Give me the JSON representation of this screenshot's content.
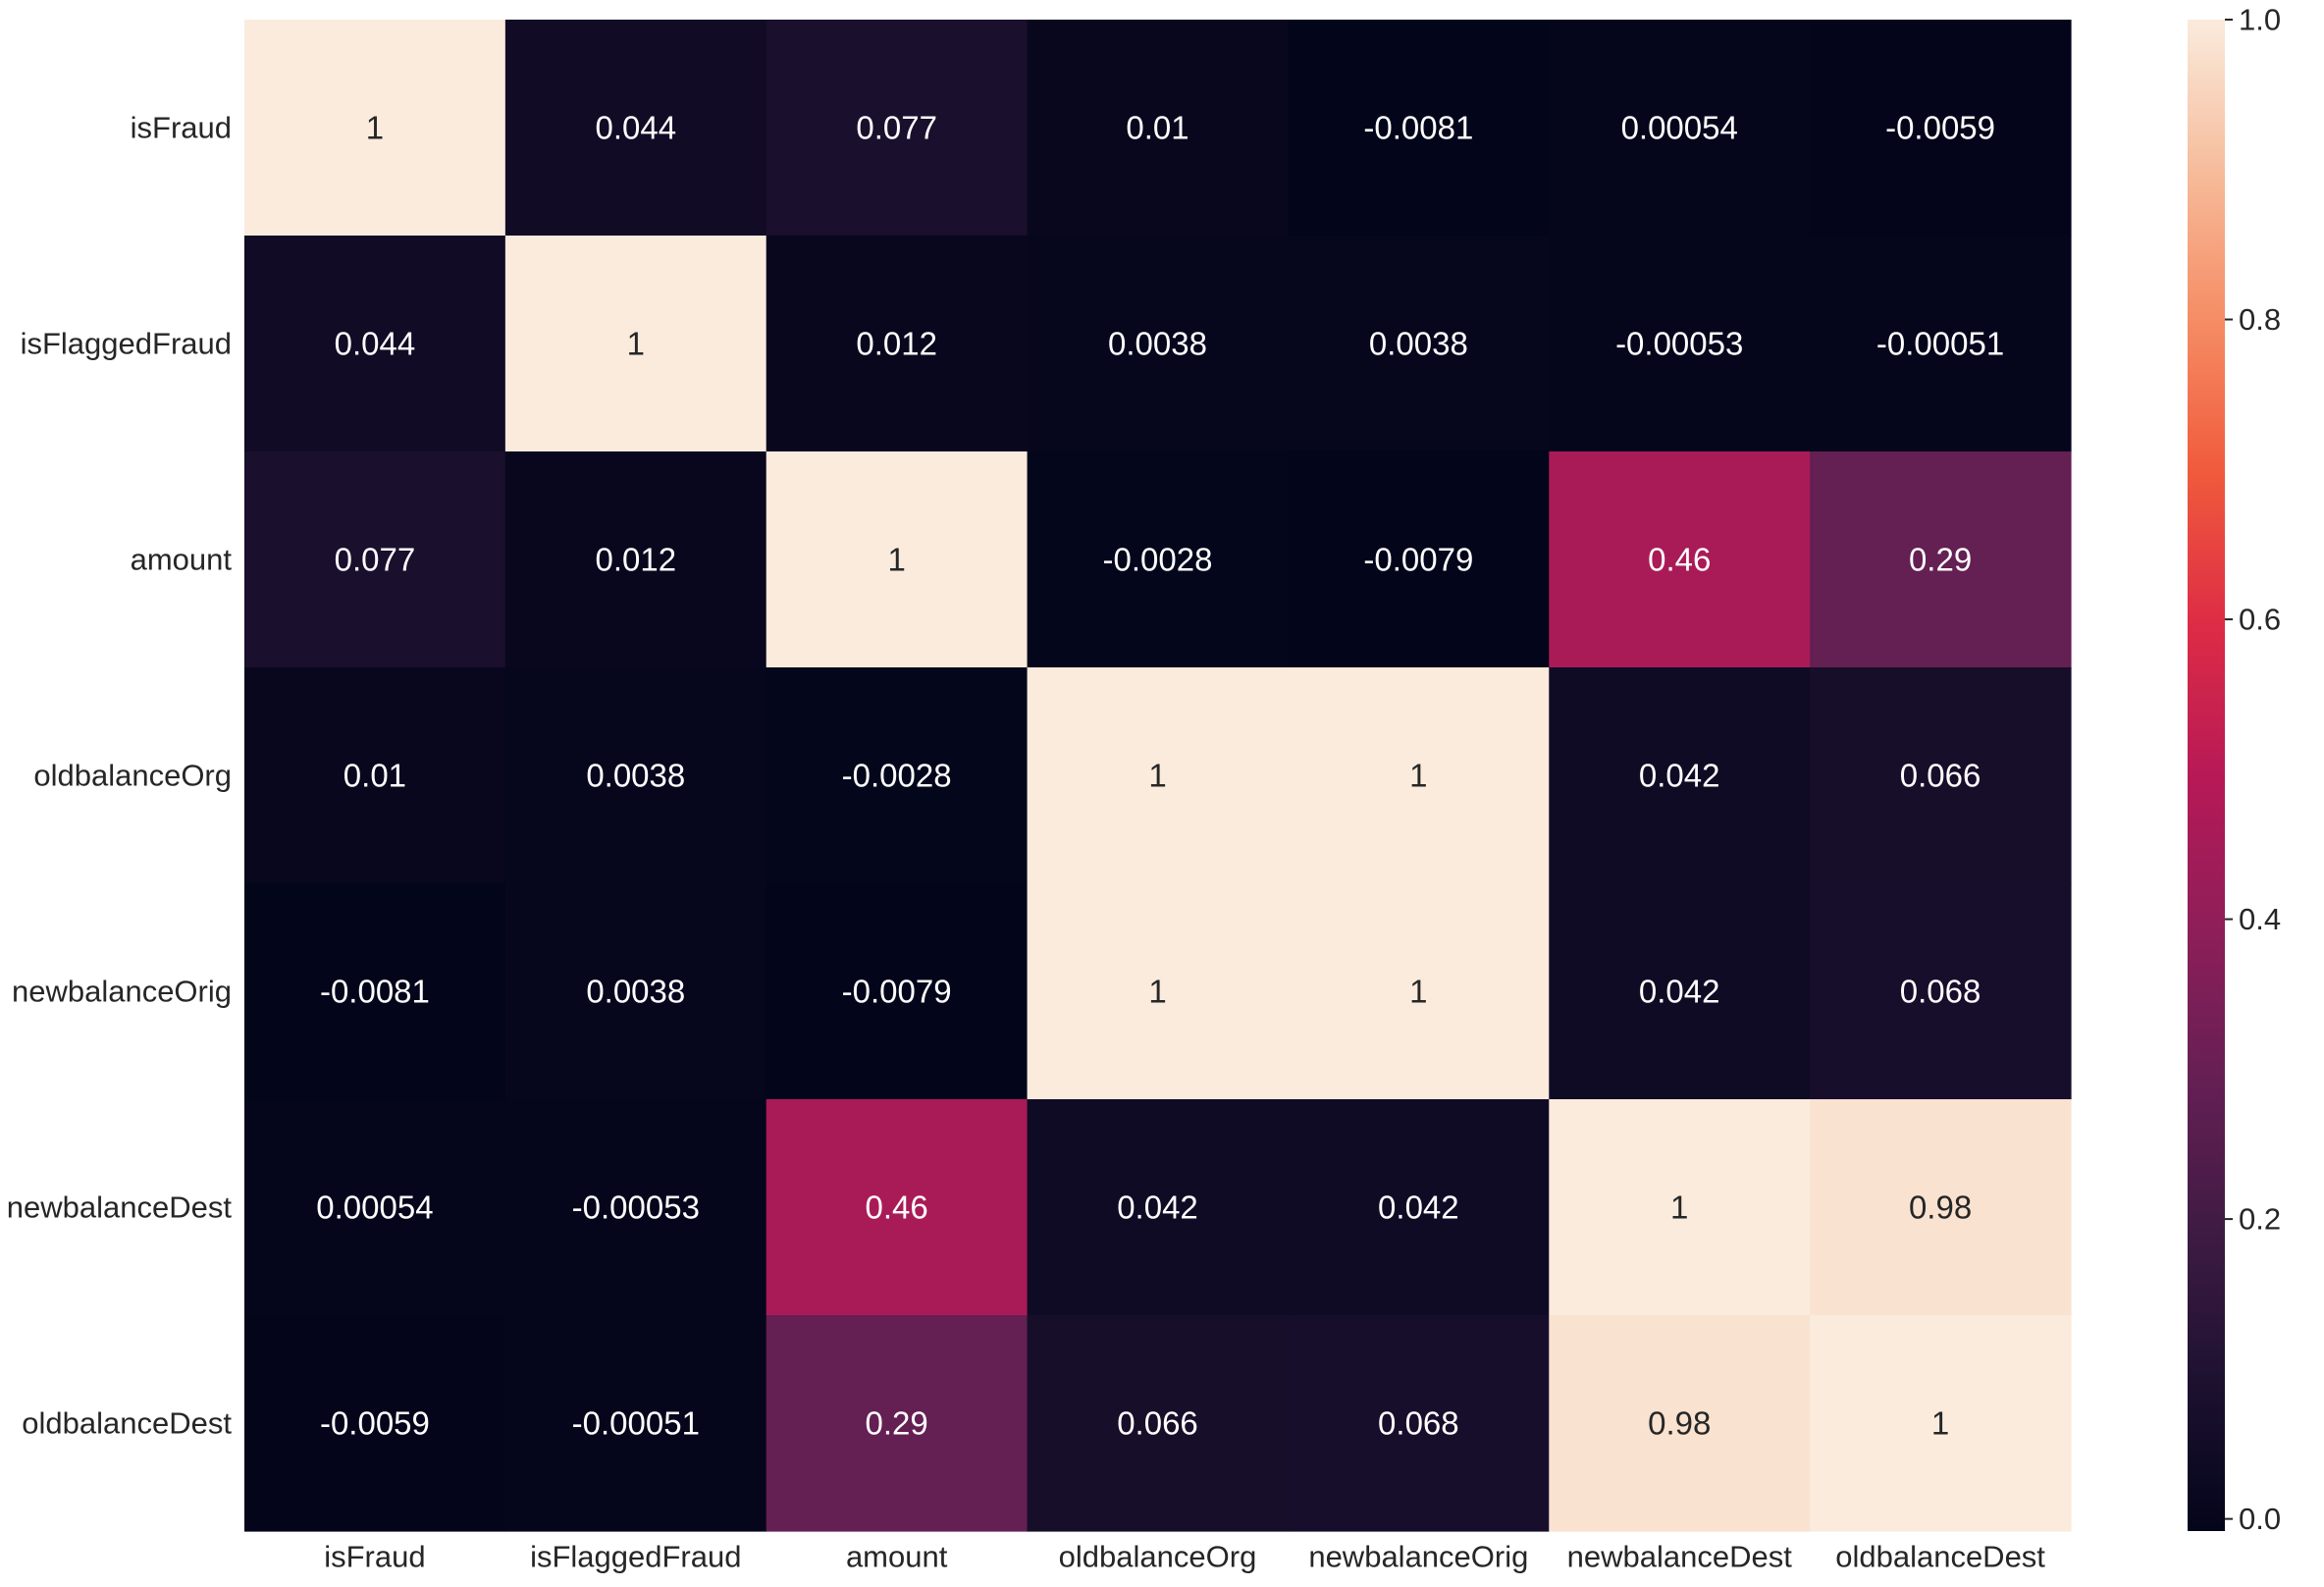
{
  "chart_data": {
    "type": "heatmap",
    "x_labels": [
      "isFraud",
      "isFlaggedFraud",
      "amount",
      "oldbalanceOrg",
      "newbalanceOrig",
      "newbalanceDest",
      "oldbalanceDest"
    ],
    "y_labels": [
      "isFraud",
      "isFlaggedFraud",
      "amount",
      "oldbalanceOrg",
      "newbalanceOrig",
      "newbalanceDest",
      "oldbalanceDest"
    ],
    "values": [
      [
        1,
        0.044,
        0.077,
        0.01,
        -0.0081,
        0.00054,
        -0.0059
      ],
      [
        0.044,
        1,
        0.012,
        0.0038,
        0.0038,
        -0.00053,
        -0.00051
      ],
      [
        0.077,
        0.012,
        1,
        -0.0028,
        -0.0079,
        0.46,
        0.29
      ],
      [
        0.01,
        0.0038,
        -0.0028,
        1,
        1,
        0.042,
        0.066
      ],
      [
        -0.0081,
        0.0038,
        -0.0079,
        1,
        1,
        0.042,
        0.068
      ],
      [
        0.00054,
        -0.00053,
        0.46,
        0.042,
        0.042,
        1,
        0.98
      ],
      [
        -0.0059,
        -0.00051,
        0.29,
        0.066,
        0.068,
        0.98,
        1
      ]
    ],
    "annotations": [
      [
        "1",
        "0.044",
        "0.077",
        "0.01",
        "-0.0081",
        "0.00054",
        "-0.0059"
      ],
      [
        "0.044",
        "1",
        "0.012",
        "0.0038",
        "0.0038",
        "-0.00053",
        "-0.00051"
      ],
      [
        "0.077",
        "0.012",
        "1",
        "-0.0028",
        "-0.0079",
        "0.46",
        "0.29"
      ],
      [
        "0.01",
        "0.0038",
        "-0.0028",
        "1",
        "1",
        "0.042",
        "0.066"
      ],
      [
        "-0.0081",
        "0.0038",
        "-0.0079",
        "1",
        "1",
        "0.042",
        "0.068"
      ],
      [
        "0.00054",
        "-0.00053",
        "0.46",
        "0.042",
        "0.042",
        "1",
        "0.98"
      ],
      [
        "-0.0059",
        "-0.00051",
        "0.29",
        "0.066",
        "0.068",
        "0.98",
        "1"
      ]
    ],
    "colorbar": {
      "min": -0.0081,
      "max": 1.0,
      "ticks": [
        0.0,
        0.2,
        0.4,
        0.6,
        0.8,
        1.0
      ],
      "tick_labels": [
        "0.0",
        "0.2",
        "0.4",
        "0.6",
        "0.8",
        "1.0"
      ],
      "colormap": "rocket"
    },
    "colors": {
      "dark_text": "#262626",
      "light_text": "#ffffff",
      "dark_cell_text": "#262626"
    }
  }
}
